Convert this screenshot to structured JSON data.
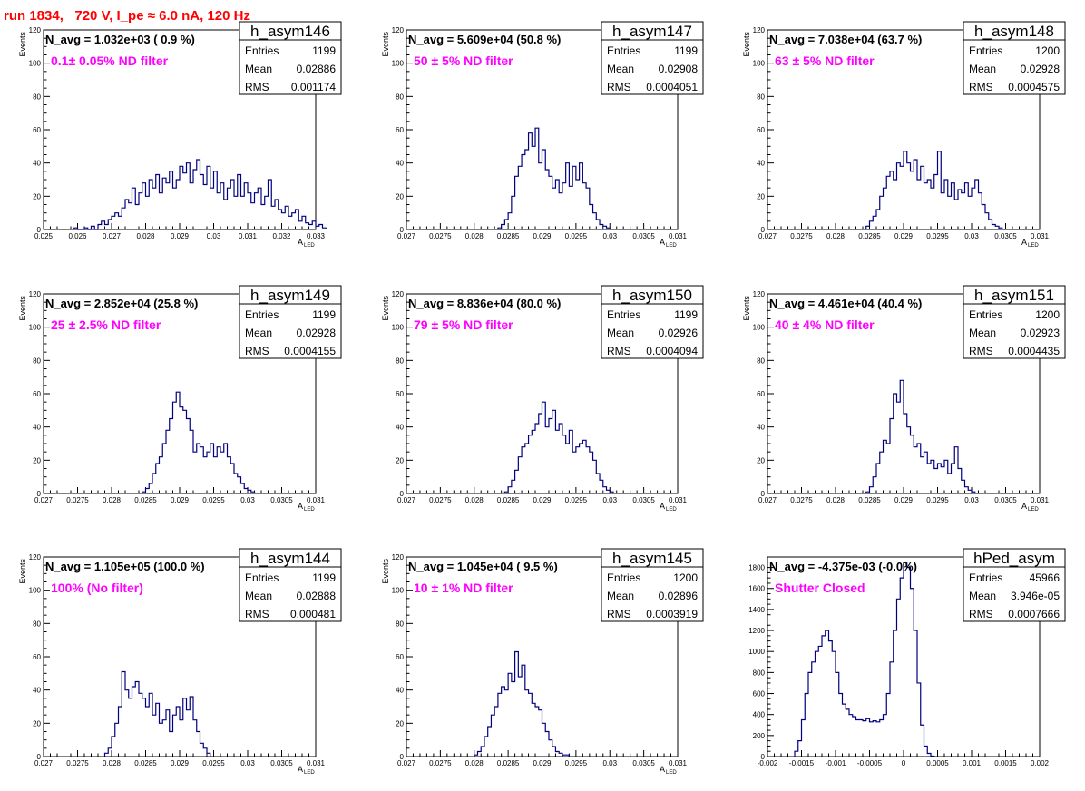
{
  "header": "run 1834,   720 V, I_pe ≈ 6.0 nA, 120 Hz",
  "colors": {
    "header": "#ff0000",
    "histogram": "#000080",
    "annotation": "#ff00ff"
  },
  "chart_data": [
    {
      "type": "histogram",
      "name": "h_asym146",
      "navg": "N_avg = 1.032e+03 ( 0.9 %)",
      "filter": "0.1± 0.05% ND filter",
      "stats": [
        [
          "Entries",
          "1199"
        ],
        [
          "Mean",
          "0.02886"
        ],
        [
          "RMS",
          "0.001174"
        ]
      ],
      "xlim": [
        0.025,
        0.033
      ],
      "ylim": [
        0,
        120
      ],
      "xticks": [
        "0.025",
        "0.026",
        "0.027",
        "0.028",
        "0.029",
        "0.03",
        "0.031",
        "0.032",
        "0.033"
      ],
      "yticks": [
        "0",
        "20",
        "40",
        "60",
        "80",
        "100",
        "120"
      ],
      "ylabel": "Events",
      "xlabel": "A",
      "xlabel_sub": "LED",
      "x_start": 0.0259,
      "bin_width": 0.0001,
      "values": [
        1,
        0,
        0,
        1,
        0,
        2,
        0,
        3,
        5,
        3,
        6,
        8,
        10,
        8,
        13,
        18,
        16,
        25,
        15,
        22,
        28,
        20,
        30,
        25,
        33,
        22,
        31,
        28,
        35,
        25,
        30,
        38,
        34,
        40,
        28,
        36,
        42,
        33,
        27,
        38,
        25,
        35,
        22,
        28,
        18,
        25,
        30,
        20,
        33,
        20,
        28,
        22,
        16,
        22,
        25,
        15,
        20,
        30,
        14,
        18,
        12,
        10,
        14,
        8,
        10,
        12,
        5,
        8,
        4,
        3,
        5,
        2,
        3,
        1
      ]
    },
    {
      "type": "histogram",
      "name": "h_asym147",
      "navg": "N_avg = 5.609e+04 (50.8 %)",
      "filter": "50 ± 5% ND filter",
      "stats": [
        [
          "Entries",
          "1199"
        ],
        [
          "Mean",
          "0.02908"
        ],
        [
          "RMS",
          "0.0004051"
        ]
      ],
      "xlim": [
        0.027,
        0.031
      ],
      "ylim": [
        0,
        120
      ],
      "xticks": [
        "0.027",
        "0.0275",
        "0.028",
        "0.0285",
        "0.029",
        "0.0295",
        "0.03",
        "0.0305",
        "0.031"
      ],
      "yticks": [
        "0",
        "20",
        "40",
        "60",
        "80",
        "100",
        "120"
      ],
      "ylabel": "Events",
      "xlabel": "A",
      "xlabel_sub": "LED",
      "x_start": 0.02835,
      "bin_width": 5e-05,
      "values": [
        1,
        3,
        6,
        10,
        20,
        32,
        38,
        45,
        48,
        58,
        50,
        61,
        40,
        48,
        36,
        32,
        25,
        30,
        22,
        28,
        40,
        26,
        38,
        30,
        40,
        28,
        25,
        15,
        10,
        6,
        3,
        2,
        1
      ]
    },
    {
      "type": "histogram",
      "name": "h_asym148",
      "navg": "N_avg = 7.038e+04 (63.7 %)",
      "filter": "63 ± 5% ND filter",
      "stats": [
        [
          "Entries",
          "1200"
        ],
        [
          "Mean",
          "0.02928"
        ],
        [
          "RMS",
          "0.0004575"
        ]
      ],
      "xlim": [
        0.027,
        0.031
      ],
      "ylim": [
        0,
        120
      ],
      "xticks": [
        "0.027",
        "0.0275",
        "0.028",
        "0.0285",
        "0.029",
        "0.0295",
        "0.03",
        "0.0305",
        "0.031"
      ],
      "yticks": [
        "0",
        "20",
        "40",
        "60",
        "80",
        "100",
        "120"
      ],
      "ylabel": "Events",
      "xlabel": "A",
      "xlabel_sub": "LED",
      "x_start": 0.02845,
      "bin_width": 5e-05,
      "values": [
        2,
        5,
        8,
        12,
        20,
        25,
        32,
        35,
        30,
        40,
        38,
        47,
        40,
        35,
        42,
        30,
        38,
        28,
        30,
        25,
        33,
        47,
        22,
        30,
        20,
        28,
        18,
        24,
        22,
        28,
        20,
        25,
        30,
        22,
        15,
        10,
        6,
        3,
        2,
        1
      ]
    },
    {
      "type": "histogram",
      "name": "h_asym149",
      "navg": "N_avg = 2.852e+04 (25.8 %)",
      "filter": "25 ± 2.5% ND filter",
      "stats": [
        [
          "Entries",
          "1199"
        ],
        [
          "Mean",
          "0.02928"
        ],
        [
          "RMS",
          "0.0004155"
        ]
      ],
      "xlim": [
        0.027,
        0.031
      ],
      "ylim": [
        0,
        120
      ],
      "xticks": [
        "0.027",
        "0.0275",
        "0.028",
        "0.0285",
        "0.029",
        "0.0295",
        "0.03",
        "0.0305",
        "0.031"
      ],
      "yticks": [
        "0",
        "20",
        "40",
        "60",
        "80",
        "100",
        "120"
      ],
      "ylabel": "Events",
      "xlabel": "A",
      "xlabel_sub": "LED",
      "x_start": 0.02845,
      "bin_width": 5e-05,
      "values": [
        1,
        3,
        6,
        12,
        18,
        22,
        30,
        38,
        45,
        55,
        61,
        52,
        50,
        45,
        38,
        25,
        30,
        28,
        22,
        25,
        30,
        22,
        28,
        25,
        30,
        22,
        18,
        12,
        10,
        6,
        3,
        2,
        1
      ]
    },
    {
      "type": "histogram",
      "name": "h_asym150",
      "navg": "N_avg = 8.836e+04 (80.0 %)",
      "filter": "79 ± 5% ND filter",
      "stats": [
        [
          "Entries",
          "1199"
        ],
        [
          "Mean",
          "0.02926"
        ],
        [
          "RMS",
          "0.0004094"
        ]
      ],
      "xlim": [
        0.027,
        0.031
      ],
      "ylim": [
        0,
        120
      ],
      "xticks": [
        "0.027",
        "0.0275",
        "0.028",
        "0.0285",
        "0.029",
        "0.0295",
        "0.03",
        "0.0305",
        "0.031"
      ],
      "yticks": [
        "0",
        "20",
        "40",
        "60",
        "80",
        "100",
        "120"
      ],
      "ylabel": "Events",
      "xlabel": "A",
      "xlabel_sub": "LED",
      "x_start": 0.02845,
      "bin_width": 5e-05,
      "values": [
        1,
        4,
        8,
        14,
        22,
        28,
        30,
        35,
        38,
        42,
        48,
        55,
        40,
        45,
        50,
        38,
        42,
        35,
        30,
        38,
        25,
        28,
        30,
        32,
        28,
        25,
        20,
        12,
        8,
        4,
        2,
        1
      ]
    },
    {
      "type": "histogram",
      "name": "h_asym151",
      "navg": "N_avg = 4.461e+04 (40.4 %)",
      "filter": "40 ± 4% ND filter",
      "stats": [
        [
          "Entries",
          "1200"
        ],
        [
          "Mean",
          "0.02923"
        ],
        [
          "RMS",
          "0.0004435"
        ]
      ],
      "xlim": [
        0.027,
        0.031
      ],
      "ylim": [
        0,
        120
      ],
      "xticks": [
        "0.027",
        "0.0275",
        "0.028",
        "0.0285",
        "0.029",
        "0.0295",
        "0.03",
        "0.0305",
        "0.031"
      ],
      "yticks": [
        "0",
        "20",
        "40",
        "60",
        "80",
        "100",
        "120"
      ],
      "ylabel": "Events",
      "xlabel": "A",
      "xlabel_sub": "LED",
      "x_start": 0.02845,
      "bin_width": 5e-05,
      "values": [
        1,
        4,
        10,
        18,
        25,
        32,
        30,
        45,
        60,
        55,
        68,
        48,
        40,
        35,
        28,
        30,
        22,
        25,
        18,
        20,
        15,
        18,
        16,
        20,
        12,
        18,
        28,
        15,
        8,
        4,
        2,
        1
      ]
    },
    {
      "type": "histogram",
      "name": "h_asym144",
      "navg": "N_avg = 1.105e+05 (100.0 %)",
      "filter": "100% (No filter)",
      "stats": [
        [
          "Entries",
          "1199"
        ],
        [
          "Mean",
          "0.02888"
        ],
        [
          "RMS",
          "0.000481"
        ]
      ],
      "xlim": [
        0.027,
        0.031
      ],
      "ylim": [
        0,
        120
      ],
      "xticks": [
        "0.027",
        "0.0275",
        "0.028",
        "0.0285",
        "0.029",
        "0.0295",
        "0.03",
        "0.0305",
        "0.031"
      ],
      "yticks": [
        "0",
        "20",
        "40",
        "60",
        "80",
        "100",
        "120"
      ],
      "ylabel": "Events",
      "xlabel": "A",
      "xlabel_sub": "LED",
      "x_start": 0.0279,
      "bin_width": 5e-05,
      "values": [
        2,
        5,
        12,
        20,
        30,
        51,
        40,
        35,
        42,
        45,
        38,
        35,
        30,
        38,
        25,
        32,
        20,
        22,
        28,
        15,
        25,
        30,
        22,
        35,
        28,
        36,
        22,
        15,
        8,
        5,
        2
      ]
    },
    {
      "type": "histogram",
      "name": "h_asym145",
      "navg": "N_avg = 1.045e+04 ( 9.5 %)",
      "filter": "10 ± 1% ND filter",
      "stats": [
        [
          "Entries",
          "1200"
        ],
        [
          "Mean",
          "0.02896"
        ],
        [
          "RMS",
          "0.0003919"
        ]
      ],
      "xlim": [
        0.027,
        0.031
      ],
      "ylim": [
        0,
        120
      ],
      "xticks": [
        "0.027",
        "0.0275",
        "0.028",
        "0.0285",
        "0.029",
        "0.0295",
        "0.03",
        "0.0305",
        "0.031"
      ],
      "yticks": [
        "0",
        "20",
        "40",
        "60",
        "80",
        "100",
        "120"
      ],
      "ylabel": "Events",
      "xlabel": "A",
      "xlabel_sub": "LED",
      "x_start": 0.028,
      "bin_width": 5e-05,
      "values": [
        1,
        3,
        6,
        12,
        18,
        25,
        30,
        38,
        42,
        40,
        50,
        45,
        63,
        48,
        55,
        40,
        38,
        32,
        30,
        28,
        20,
        15,
        10,
        6,
        3,
        2,
        1,
        1
      ]
    },
    {
      "type": "histogram",
      "name": "hPed_asym",
      "navg": "N_avg = -4.375e-03 (-0.0%)",
      "filter": "Shutter Closed",
      "stats": [
        [
          "Entries",
          "45966"
        ],
        [
          "Mean",
          "3.946e-05"
        ],
        [
          "RMS",
          "0.0007666"
        ]
      ],
      "xlim": [
        -0.002,
        0.002
      ],
      "ylim": [
        0,
        1900
      ],
      "xticks": [
        "-0.002",
        "-0.0015",
        "-0.001",
        "-0.0005",
        "0",
        "0.0005",
        "0.001",
        "0.0015",
        "0.002"
      ],
      "yticks": [
        "0",
        "200",
        "400",
        "600",
        "800",
        "1000",
        "1200",
        "1400",
        "1600",
        "1800"
      ],
      "ylabel": "",
      "xlabel": "",
      "xlabel_sub": "",
      "x_start": -0.0016,
      "bin_width": 5e-05,
      "values": [
        50,
        150,
        350,
        600,
        800,
        900,
        1000,
        1050,
        1150,
        1200,
        1100,
        1000,
        800,
        600,
        500,
        450,
        400,
        380,
        350,
        350,
        340,
        360,
        330,
        340,
        330,
        350,
        400,
        600,
        900,
        1200,
        1500,
        1700,
        1850,
        1800,
        1600,
        1200,
        700,
        300,
        100,
        30,
        5
      ]
    }
  ]
}
